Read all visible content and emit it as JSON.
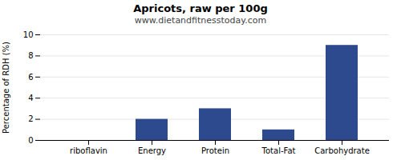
{
  "chart_data": {
    "type": "bar",
    "title": "Apricots, raw per 100g",
    "subtitle": "www.dietandfitnesstoday.com",
    "categories": [
      "riboflavin",
      "Energy",
      "Protein",
      "Total-Fat",
      "Carbohydrate"
    ],
    "values": [
      0,
      2,
      3,
      1,
      9
    ],
    "color": "#2e4a8e",
    "ylabel": "Percentage of RDH (%)",
    "ylim": [
      0,
      10
    ],
    "yticks": [
      0,
      2,
      4,
      6,
      8,
      10
    ],
    "grid": true
  }
}
